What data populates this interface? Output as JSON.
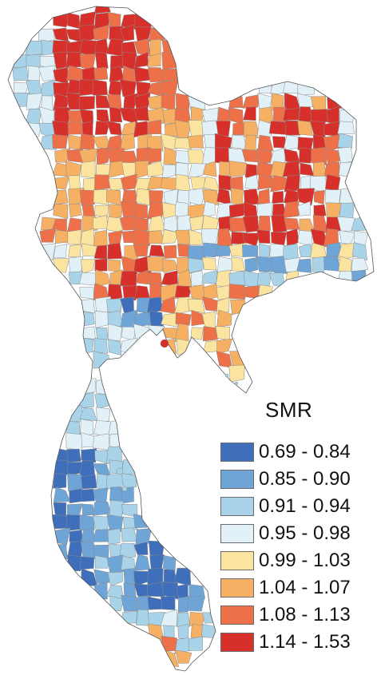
{
  "legend": {
    "title": "SMR",
    "classes": [
      {
        "label": "0.69 - 0.84",
        "color": "#3f6fba"
      },
      {
        "label": "0.85 - 0.90",
        "color": "#6ea4d6"
      },
      {
        "label": "0.91 - 0.94",
        "color": "#a9d3e8"
      },
      {
        "label": "0.95 - 0.98",
        "color": "#e2f1f8"
      },
      {
        "label": "0.99 - 1.03",
        "color": "#fbe3a0"
      },
      {
        "label": "1.04 - 1.07",
        "color": "#f6b064"
      },
      {
        "label": "1.08 - 1.13",
        "color": "#ee7048"
      },
      {
        "label": "1.14 - 1.53",
        "color": "#d7302a"
      }
    ]
  }
}
